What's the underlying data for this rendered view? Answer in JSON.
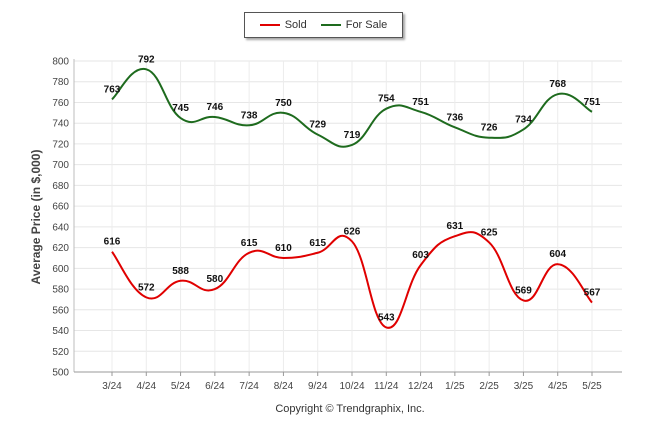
{
  "legend": {
    "sold_label": "Sold",
    "for_sale_label": "For Sale"
  },
  "copyright": "Copyright © Trendgraphix, Inc.",
  "chart_data": {
    "type": "line",
    "title": "",
    "xlabel": "",
    "ylabel": "Average Price (in $,000)",
    "ylim": [
      500,
      800
    ],
    "yticks": [
      500,
      520,
      540,
      560,
      580,
      600,
      620,
      640,
      660,
      680,
      700,
      720,
      740,
      760,
      780,
      800
    ],
    "grid": true,
    "legend_position": "top-center",
    "categories": [
      "3/24",
      "4/24",
      "5/24",
      "6/24",
      "7/24",
      "8/24",
      "9/24",
      "10/24",
      "11/24",
      "12/24",
      "1/25",
      "2/25",
      "3/25",
      "4/25",
      "5/25"
    ],
    "series": [
      {
        "name": "Sold",
        "color": "#e00000",
        "values": [
          616,
          572,
          588,
          580,
          615,
          610,
          615,
          626,
          543,
          603,
          631,
          625,
          569,
          604,
          567
        ]
      },
      {
        "name": "For Sale",
        "color": "#1e6b1e",
        "values": [
          763,
          792,
          745,
          746,
          738,
          750,
          729,
          719,
          754,
          751,
          736,
          726,
          734,
          768,
          751
        ]
      }
    ]
  }
}
